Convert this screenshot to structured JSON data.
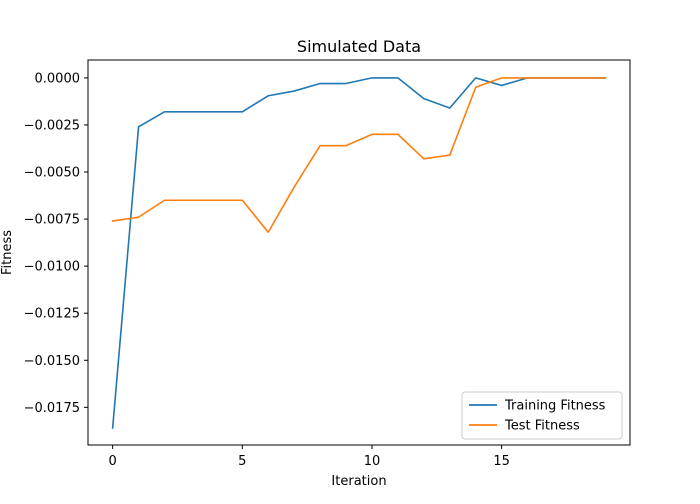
{
  "chart_data": {
    "type": "line",
    "title": "Simulated Data",
    "xlabel": "Iteration",
    "ylabel": "Fitness",
    "xlim": [
      -0.95,
      19.95
    ],
    "ylim": [
      -0.0195,
      0.00095
    ],
    "xticks": [
      0,
      5,
      10,
      15
    ],
    "xtick_labels": [
      "0",
      "5",
      "10",
      "15"
    ],
    "yticks": [
      0.0,
      -0.0025,
      -0.005,
      -0.0075,
      -0.01,
      -0.0125,
      -0.015,
      -0.0175
    ],
    "ytick_labels": [
      "0.0000",
      "−0.0025",
      "−0.0050",
      "−0.0075",
      "−0.0100",
      "−0.0125",
      "−0.0150",
      "−0.0175"
    ],
    "x": [
      0,
      1,
      2,
      3,
      4,
      5,
      6,
      7,
      8,
      9,
      10,
      11,
      12,
      13,
      14,
      15,
      16,
      17,
      18,
      19
    ],
    "series": [
      {
        "name": "Training Fitness",
        "color": "#1f77b4",
        "values": [
          -0.0186,
          -0.0026,
          -0.0018,
          -0.0018,
          -0.0018,
          -0.0018,
          -0.00095,
          -0.0007,
          -0.0003,
          -0.0003,
          0.0,
          0.0,
          -0.0011,
          -0.0016,
          0.0,
          -0.0004,
          0.0,
          0.0,
          0.0,
          0.0
        ]
      },
      {
        "name": "Test Fitness",
        "color": "#ff7f0e",
        "values": [
          -0.0076,
          -0.0074,
          -0.0065,
          -0.0065,
          -0.0065,
          -0.0065,
          -0.0082,
          -0.0058,
          -0.0036,
          -0.0036,
          -0.003,
          -0.003,
          -0.0043,
          -0.0041,
          -0.0005,
          0.0,
          0.0,
          0.0,
          0.0,
          0.0
        ]
      }
    ],
    "legend_position": "lower-right",
    "grid": false
  }
}
